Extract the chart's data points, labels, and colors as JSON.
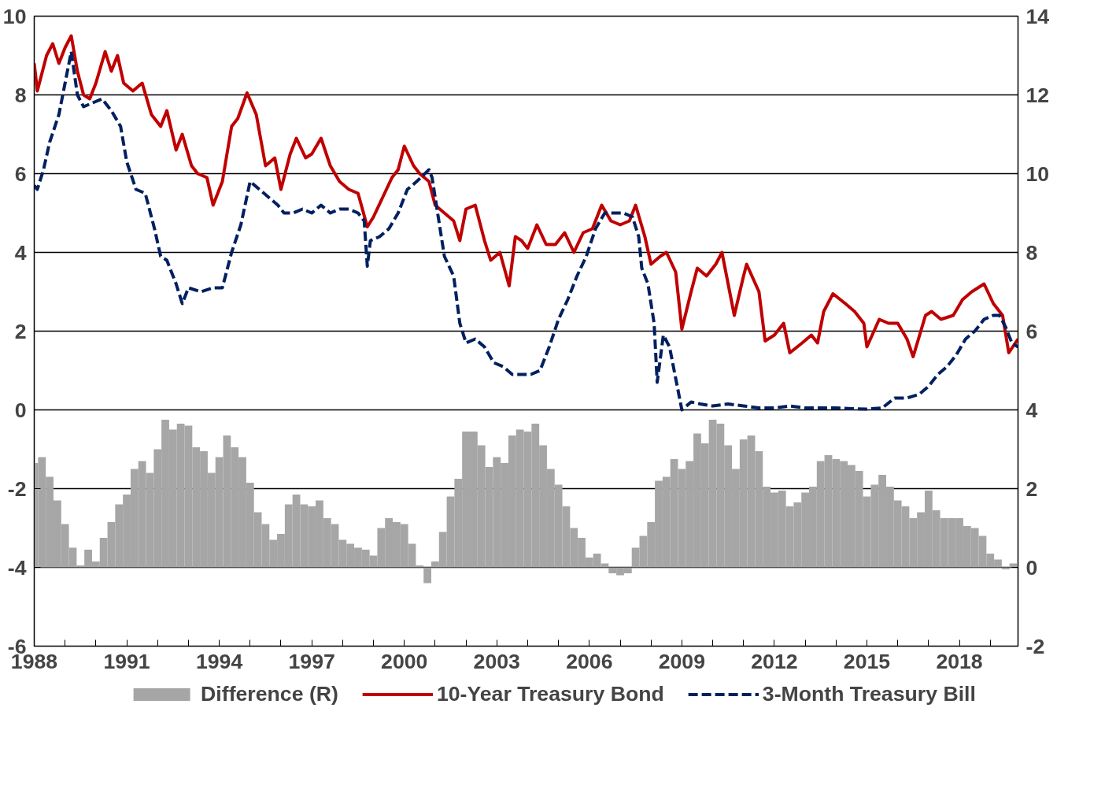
{
  "chart_data": {
    "type": "line",
    "xlim": [
      1988,
      2019.9
    ],
    "xticks": [
      1988,
      {
        "value": 1989,
        "label": null
      },
      {
        "value": 1990,
        "label": null
      },
      1991,
      {
        "value": 1992,
        "label": null
      },
      {
        "value": 1993,
        "label": null
      },
      1994,
      {
        "value": 1995,
        "label": null
      },
      {
        "value": 1996,
        "label": null
      },
      1997,
      {
        "value": 1998,
        "label": null
      },
      {
        "value": 1999,
        "label": null
      },
      2000,
      {
        "value": 2001,
        "label": null
      },
      {
        "value": 2002,
        "label": null
      },
      2003,
      {
        "value": 2004,
        "label": null
      },
      {
        "value": 2005,
        "label": null
      },
      2006,
      {
        "value": 2007,
        "label": null
      },
      {
        "value": 2008,
        "label": null
      },
      2009,
      {
        "value": 2010,
        "label": null
      },
      {
        "value": 2011,
        "label": null
      },
      2012,
      {
        "value": 2013,
        "label": null
      },
      {
        "value": 2014,
        "label": null
      },
      2015,
      {
        "value": 2016,
        "label": null
      },
      {
        "value": 2017,
        "label": null
      },
      2018,
      {
        "value": 2019,
        "label": null
      }
    ],
    "ylim": [
      -6,
      10
    ],
    "yticks": [
      -6,
      -4,
      -2,
      0,
      2,
      4,
      6,
      8,
      10
    ],
    "y2lim": [
      -2,
      14
    ],
    "y2ticks": [
      -2,
      0,
      2,
      4,
      6,
      8,
      10,
      12,
      14
    ],
    "grid": "y",
    "legend": "bottom",
    "series": [
      {
        "name": "Difference (R)",
        "type": "bar",
        "axis": "y2",
        "color": "#a6a6a6",
        "x": [
          1988.0,
          1988.25,
          1988.5,
          1988.75,
          1989.0,
          1989.25,
          1989.5,
          1989.75,
          1990.0,
          1990.25,
          1990.5,
          1990.75,
          1991.0,
          1991.25,
          1991.5,
          1991.75,
          1992.0,
          1992.25,
          1992.5,
          1992.75,
          1993.0,
          1993.25,
          1993.5,
          1993.75,
          1994.0,
          1994.25,
          1994.5,
          1994.75,
          1995.0,
          1995.25,
          1995.5,
          1995.75,
          1996.0,
          1996.25,
          1996.5,
          1996.75,
          1997.0,
          1997.25,
          1997.5,
          1997.75,
          1998.0,
          1998.25,
          1998.5,
          1998.75,
          1999.0,
          1999.25,
          1999.5,
          1999.75,
          2000.0,
          2000.25,
          2000.5,
          2000.75,
          2001.0,
          2001.25,
          2001.5,
          2001.75,
          2002.0,
          2002.25,
          2002.5,
          2002.75,
          2003.0,
          2003.25,
          2003.5,
          2003.75,
          2004.0,
          2004.25,
          2004.5,
          2004.75,
          2005.0,
          2005.25,
          2005.5,
          2005.75,
          2006.0,
          2006.25,
          2006.5,
          2006.75,
          2007.0,
          2007.25,
          2007.5,
          2007.75,
          2008.0,
          2008.25,
          2008.5,
          2008.75,
          2009.0,
          2009.25,
          2009.5,
          2009.75,
          2010.0,
          2010.25,
          2010.5,
          2010.75,
          2011.0,
          2011.25,
          2011.5,
          2011.75,
          2012.0,
          2012.25,
          2012.5,
          2012.75,
          2013.0,
          2013.25,
          2013.5,
          2013.75,
          2014.0,
          2014.25,
          2014.5,
          2014.75,
          2015.0,
          2015.25,
          2015.5,
          2015.75,
          2016.0,
          2016.25,
          2016.5,
          2016.75,
          2017.0,
          2017.25,
          2017.5,
          2017.75,
          2018.0,
          2018.25,
          2018.5,
          2018.75,
          2019.0,
          2019.25,
          2019.5,
          2019.75
        ],
        "values": [
          2.65,
          2.8,
          2.3,
          1.7,
          1.1,
          0.5,
          0.05,
          0.45,
          0.15,
          0.75,
          1.15,
          1.6,
          1.85,
          2.5,
          2.7,
          2.4,
          3.0,
          3.75,
          3.5,
          3.65,
          3.6,
          3.05,
          2.95,
          2.4,
          2.8,
          3.35,
          3.05,
          2.8,
          2.15,
          1.4,
          1.1,
          0.7,
          0.85,
          1.6,
          1.85,
          1.6,
          1.55,
          1.7,
          1.25,
          1.1,
          0.7,
          0.6,
          0.5,
          0.45,
          0.3,
          1.0,
          1.25,
          1.15,
          1.1,
          0.6,
          0.05,
          -0.4,
          0.15,
          0.9,
          1.8,
          2.25,
          3.45,
          3.45,
          3.1,
          2.55,
          2.8,
          2.65,
          3.35,
          3.5,
          3.45,
          3.65,
          3.1,
          2.5,
          2.1,
          1.55,
          1.0,
          0.75,
          0.25,
          0.35,
          0.1,
          -0.15,
          -0.2,
          -0.15,
          0.5,
          0.8,
          1.15,
          2.2,
          2.3,
          2.75,
          2.5,
          2.7,
          3.4,
          3.15,
          3.75,
          3.65,
          3.1,
          2.5,
          3.25,
          3.35,
          2.95,
          2.05,
          1.9,
          1.95,
          1.55,
          1.65,
          1.9,
          2.05,
          2.7,
          2.85,
          2.75,
          2.7,
          2.6,
          2.45,
          1.8,
          2.1,
          2.35,
          2.05,
          1.7,
          1.55,
          1.25,
          1.4,
          1.95,
          1.45,
          1.25,
          1.25,
          1.25,
          1.05,
          1.0,
          0.8,
          0.35,
          0.2,
          -0.05,
          0.1
        ]
      },
      {
        "name": "10-Year Treasury Bond",
        "type": "line",
        "color": "#c00000",
        "line_style": "solid",
        "x": [
          1988.0,
          1988.1,
          1988.4,
          1988.6,
          1988.8,
          1989.0,
          1989.2,
          1989.4,
          1989.6,
          1989.8,
          1990.0,
          1990.3,
          1990.5,
          1990.7,
          1990.9,
          1991.2,
          1991.5,
          1991.8,
          1992.1,
          1992.3,
          1992.6,
          1992.8,
          1993.1,
          1993.3,
          1993.6,
          1993.8,
          1994.1,
          1994.4,
          1994.6,
          1994.9,
          1995.2,
          1995.5,
          1995.8,
          1996.0,
          1996.3,
          1996.5,
          1996.8,
          1997.0,
          1997.3,
          1997.6,
          1997.9,
          1998.2,
          1998.5,
          1998.8,
          1999.0,
          1999.3,
          1999.6,
          1999.8,
          2000.0,
          2000.3,
          2000.5,
          2000.8,
          2001.0,
          2001.3,
          2001.6,
          2001.8,
          2002.0,
          2002.3,
          2002.6,
          2002.8,
          2003.1,
          2003.4,
          2003.6,
          2003.8,
          2004.0,
          2004.3,
          2004.6,
          2004.9,
          2005.2,
          2005.5,
          2005.8,
          2006.1,
          2006.4,
          2006.7,
          2007.0,
          2007.3,
          2007.5,
          2007.8,
          2008.0,
          2008.3,
          2008.5,
          2008.8,
          2009.0,
          2009.3,
          2009.5,
          2009.8,
          2010.1,
          2010.3,
          2010.7,
          2011.0,
          2011.1,
          2011.5,
          2011.7,
          2012.0,
          2012.3,
          2012.5,
          2012.9,
          2013.2,
          2013.4,
          2013.6,
          2013.9,
          2014.3,
          2014.6,
          2014.9,
          2015.0,
          2015.4,
          2015.7,
          2016.0,
          2016.3,
          2016.5,
          2016.9,
          2017.1,
          2017.4,
          2017.8,
          2018.1,
          2018.4,
          2018.8,
          2019.1,
          2019.4,
          2019.6,
          2019.9
        ],
        "values": [
          8.8,
          8.1,
          9.0,
          9.3,
          8.8,
          9.2,
          9.5,
          8.6,
          8.0,
          7.9,
          8.3,
          9.1,
          8.6,
          9.0,
          8.3,
          8.1,
          8.3,
          7.5,
          7.2,
          7.6,
          6.6,
          7.0,
          6.2,
          6.0,
          5.9,
          5.2,
          5.8,
          7.2,
          7.4,
          8.05,
          7.5,
          6.2,
          6.4,
          5.6,
          6.5,
          6.9,
          6.4,
          6.5,
          6.9,
          6.2,
          5.8,
          5.6,
          5.5,
          4.65,
          4.9,
          5.4,
          5.9,
          6.1,
          6.7,
          6.2,
          6.0,
          5.8,
          5.2,
          5.0,
          4.8,
          4.3,
          5.1,
          5.2,
          4.3,
          3.8,
          4.0,
          3.15,
          4.4,
          4.3,
          4.1,
          4.7,
          4.2,
          4.2,
          4.5,
          4.0,
          4.5,
          4.6,
          5.2,
          4.8,
          4.7,
          4.8,
          5.2,
          4.4,
          3.7,
          3.9,
          4.0,
          3.5,
          2.05,
          3.0,
          3.6,
          3.4,
          3.7,
          4.0,
          2.4,
          3.4,
          3.7,
          3.0,
          1.75,
          1.9,
          2.2,
          1.45,
          1.7,
          1.9,
          1.7,
          2.5,
          2.95,
          2.7,
          2.5,
          2.2,
          1.6,
          2.3,
          2.2,
          2.2,
          1.8,
          1.35,
          2.4,
          2.5,
          2.3,
          2.4,
          2.8,
          3.0,
          3.2,
          2.7,
          2.4,
          1.45,
          1.8
        ]
      },
      {
        "name": "3-Month Treasury Bill",
        "type": "line",
        "color": "#002060",
        "line_style": "dashed",
        "x": [
          1988.0,
          1988.1,
          1988.3,
          1988.5,
          1988.8,
          1989.0,
          1989.2,
          1989.4,
          1989.6,
          1989.9,
          1990.2,
          1990.5,
          1990.8,
          1991.0,
          1991.3,
          1991.6,
          1991.9,
          1992.1,
          1992.3,
          1992.6,
          1992.8,
          1993.0,
          1993.4,
          1993.8,
          1994.1,
          1994.4,
          1994.7,
          1995.0,
          1995.3,
          1995.6,
          1995.9,
          1996.1,
          1996.4,
          1996.7,
          1997.0,
          1997.3,
          1997.6,
          1997.9,
          1998.2,
          1998.5,
          1998.7,
          1998.8,
          1998.9,
          1999.2,
          1999.5,
          1999.8,
          2000.1,
          2000.4,
          2000.8,
          2000.9,
          2001.1,
          2001.3,
          2001.6,
          2001.8,
          2002.0,
          2002.3,
          2002.6,
          2002.9,
          2003.2,
          2003.5,
          2003.8,
          2004.1,
          2004.4,
          2004.7,
          2005.0,
          2005.3,
          2005.6,
          2005.9,
          2006.2,
          2006.5,
          2006.8,
          2007.1,
          2007.4,
          2007.6,
          2007.7,
          2007.9,
          2008.1,
          2008.2,
          2008.4,
          2008.6,
          2008.8,
          2009.0,
          2009.3,
          2009.6,
          2010.0,
          2010.5,
          2011.0,
          2011.5,
          2012.0,
          2012.5,
          2013.0,
          2013.5,
          2014.0,
          2014.5,
          2015.0,
          2015.5,
          2015.9,
          2016.3,
          2016.7,
          2017.0,
          2017.3,
          2017.6,
          2017.9,
          2018.2,
          2018.5,
          2018.8,
          2019.1,
          2019.3,
          2019.5,
          2019.7,
          2019.9
        ],
        "values": [
          5.7,
          5.6,
          6.1,
          6.8,
          7.5,
          8.3,
          9.1,
          8.0,
          7.7,
          7.8,
          7.9,
          7.6,
          7.2,
          6.3,
          5.6,
          5.5,
          4.6,
          3.9,
          3.8,
          3.2,
          2.7,
          3.1,
          3.0,
          3.1,
          3.1,
          4.0,
          4.7,
          5.8,
          5.6,
          5.4,
          5.2,
          5.0,
          5.0,
          5.1,
          5.0,
          5.2,
          5.0,
          5.1,
          5.1,
          5.0,
          4.8,
          3.65,
          4.3,
          4.4,
          4.6,
          5.0,
          5.6,
          5.8,
          6.1,
          5.9,
          4.9,
          3.9,
          3.4,
          2.2,
          1.7,
          1.8,
          1.6,
          1.2,
          1.1,
          0.9,
          0.9,
          0.9,
          1.0,
          1.6,
          2.3,
          2.8,
          3.4,
          3.9,
          4.6,
          5.0,
          5.0,
          5.0,
          4.9,
          4.4,
          3.6,
          3.2,
          2.2,
          0.7,
          1.9,
          1.6,
          0.8,
          0.0,
          0.2,
          0.15,
          0.1,
          0.15,
          0.1,
          0.05,
          0.05,
          0.1,
          0.05,
          0.05,
          0.05,
          0.03,
          0.02,
          0.05,
          0.3,
          0.3,
          0.4,
          0.6,
          0.9,
          1.1,
          1.4,
          1.8,
          2.0,
          2.3,
          2.4,
          2.4,
          2.1,
          1.7,
          1.6
        ]
      }
    ]
  }
}
